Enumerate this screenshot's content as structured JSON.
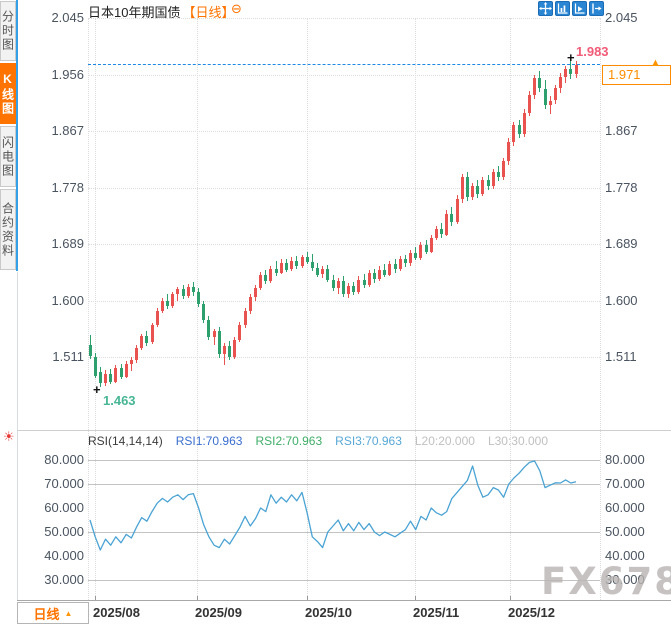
{
  "header": {
    "title": "日本10年期国债",
    "period_tag": "【日线】",
    "collapse_glyph": "⊖"
  },
  "sidebar": {
    "tabs": [
      {
        "label": "分时图",
        "active": false
      },
      {
        "label": "K线图",
        "active": true
      },
      {
        "label": "闪电图",
        "active": false
      },
      {
        "label": "合约资料",
        "active": false
      }
    ]
  },
  "toolbar": {
    "icons": [
      "crosshair",
      "zoom-axes",
      "pan-chart",
      "shift-axis-right"
    ]
  },
  "markers": {
    "high_value": "1.983",
    "low_value": "1.463",
    "last_value": "1.971",
    "high_cursor": "+",
    "low_cursor": "+",
    "latest_marker": "▲"
  },
  "rsi_header": {
    "name": "RSI(14,14,14)",
    "rsi1": "RSI1:70.963",
    "rsi2": "RSI2:70.963",
    "rsi3": "RSI3:70.963",
    "l20": "L20:20.000",
    "l30": "L30:30.000"
  },
  "footer": {
    "period_button": "日线",
    "period_arrow": "▲"
  },
  "icons": {
    "indicator_settings": "☀"
  },
  "watermark": "FX678",
  "colors": {
    "up": "#e8534f",
    "down": "#2ea06e",
    "accent_orange": "#ff7301",
    "dashed_line": "#1e88e5",
    "rsi_line": "#4aa3d4",
    "high_label": "#f25b77",
    "low_label": "#46b694",
    "icon_blue": "#2a86d2",
    "grid_dotted": "#dcdcdc",
    "grid_solid": "#c3c3c3"
  },
  "chart_data": {
    "type": "candlestick",
    "instrument": "日本10年期国债",
    "period": "日线",
    "title": "日本10年期国债【日线】",
    "price_axis": {
      "ticks": [
        2.045,
        1.956,
        1.867,
        1.778,
        1.689,
        1.6,
        1.511
      ],
      "high": 1.983,
      "low": 1.463,
      "last": 1.971
    },
    "x_axis": {
      "labels": [
        "2025/08",
        "2025/09",
        "2025/10",
        "2025/11",
        "2025/12"
      ]
    },
    "legend": "grid on, RSI sub-panel, last price dashed line at 1.971",
    "candles_ohlc": [
      [
        1.53,
        1.546,
        1.508,
        1.512
      ],
      [
        1.512,
        1.518,
        1.478,
        1.482
      ],
      [
        1.488,
        1.495,
        1.463,
        1.47
      ],
      [
        1.47,
        1.49,
        1.466,
        1.485
      ],
      [
        1.485,
        1.492,
        1.468,
        1.472
      ],
      [
        1.472,
        1.498,
        1.47,
        1.494
      ],
      [
        1.494,
        1.5,
        1.476,
        1.48
      ],
      [
        1.48,
        1.505,
        1.478,
        1.5
      ],
      [
        1.5,
        1.512,
        1.49,
        1.506
      ],
      [
        1.506,
        1.53,
        1.502,
        1.526
      ],
      [
        1.526,
        1.548,
        1.522,
        1.545
      ],
      [
        1.545,
        1.552,
        1.528,
        1.534
      ],
      [
        1.534,
        1.565,
        1.531,
        1.562
      ],
      [
        1.562,
        1.588,
        1.558,
        1.584
      ],
      [
        1.584,
        1.604,
        1.58,
        1.6
      ],
      [
        1.6,
        1.61,
        1.586,
        1.591
      ],
      [
        1.591,
        1.614,
        1.589,
        1.61
      ],
      [
        1.61,
        1.622,
        1.6,
        1.618
      ],
      [
        1.618,
        1.624,
        1.603,
        1.607
      ],
      [
        1.607,
        1.626,
        1.604,
        1.622
      ],
      [
        1.622,
        1.63,
        1.608,
        1.613
      ],
      [
        1.613,
        1.62,
        1.59,
        1.595
      ],
      [
        1.595,
        1.6,
        1.564,
        1.569
      ],
      [
        1.569,
        1.576,
        1.538,
        1.543
      ],
      [
        1.543,
        1.556,
        1.53,
        1.552
      ],
      [
        1.552,
        1.558,
        1.51,
        1.516
      ],
      [
        1.516,
        1.534,
        1.498,
        1.529
      ],
      [
        1.529,
        1.536,
        1.506,
        1.511
      ],
      [
        1.511,
        1.542,
        1.508,
        1.538
      ],
      [
        1.538,
        1.566,
        1.534,
        1.561
      ],
      [
        1.561,
        1.588,
        1.557,
        1.583
      ],
      [
        1.583,
        1.61,
        1.579,
        1.605
      ],
      [
        1.605,
        1.625,
        1.599,
        1.62
      ],
      [
        1.62,
        1.645,
        1.616,
        1.64
      ],
      [
        1.64,
        1.648,
        1.626,
        1.631
      ],
      [
        1.631,
        1.655,
        1.628,
        1.65
      ],
      [
        1.65,
        1.662,
        1.638,
        1.644
      ],
      [
        1.644,
        1.665,
        1.641,
        1.66
      ],
      [
        1.66,
        1.666,
        1.645,
        1.649
      ],
      [
        1.649,
        1.668,
        1.646,
        1.663
      ],
      [
        1.663,
        1.67,
        1.649,
        1.654
      ],
      [
        1.654,
        1.672,
        1.651,
        1.668
      ],
      [
        1.668,
        1.676,
        1.657,
        1.661
      ],
      [
        1.661,
        1.674,
        1.647,
        1.651
      ],
      [
        1.651,
        1.66,
        1.637,
        1.641
      ],
      [
        1.641,
        1.654,
        1.635,
        1.65
      ],
      [
        1.65,
        1.656,
        1.629,
        1.633
      ],
      [
        1.633,
        1.64,
        1.615,
        1.619
      ],
      [
        1.619,
        1.636,
        1.611,
        1.631
      ],
      [
        1.631,
        1.638,
        1.606,
        1.611
      ],
      [
        1.611,
        1.628,
        1.604,
        1.623
      ],
      [
        1.623,
        1.63,
        1.609,
        1.613
      ],
      [
        1.613,
        1.638,
        1.61,
        1.633
      ],
      [
        1.633,
        1.642,
        1.619,
        1.624
      ],
      [
        1.624,
        1.648,
        1.621,
        1.643
      ],
      [
        1.643,
        1.65,
        1.628,
        1.634
      ],
      [
        1.634,
        1.655,
        1.631,
        1.649
      ],
      [
        1.649,
        1.658,
        1.637,
        1.641
      ],
      [
        1.641,
        1.662,
        1.639,
        1.657
      ],
      [
        1.657,
        1.665,
        1.644,
        1.649
      ],
      [
        1.649,
        1.67,
        1.647,
        1.665
      ],
      [
        1.665,
        1.672,
        1.653,
        1.659
      ],
      [
        1.659,
        1.68,
        1.655,
        1.675
      ],
      [
        1.675,
        1.684,
        1.663,
        1.667
      ],
      [
        1.667,
        1.692,
        1.664,
        1.687
      ],
      [
        1.687,
        1.696,
        1.673,
        1.677
      ],
      [
        1.677,
        1.704,
        1.675,
        1.699
      ],
      [
        1.699,
        1.718,
        1.695,
        1.713
      ],
      [
        1.713,
        1.722,
        1.699,
        1.704
      ],
      [
        1.704,
        1.742,
        1.701,
        1.737
      ],
      [
        1.737,
        1.748,
        1.718,
        1.724
      ],
      [
        1.724,
        1.766,
        1.721,
        1.76
      ],
      [
        1.76,
        1.8,
        1.754,
        1.794
      ],
      [
        1.794,
        1.802,
        1.756,
        1.763
      ],
      [
        1.763,
        1.786,
        1.759,
        1.78
      ],
      [
        1.78,
        1.79,
        1.762,
        1.768
      ],
      [
        1.768,
        1.795,
        1.765,
        1.79
      ],
      [
        1.79,
        1.798,
        1.774,
        1.78
      ],
      [
        1.78,
        1.808,
        1.776,
        1.803
      ],
      [
        1.803,
        1.812,
        1.788,
        1.794
      ],
      [
        1.794,
        1.825,
        1.79,
        1.82
      ],
      [
        1.82,
        1.856,
        1.814,
        1.85
      ],
      [
        1.85,
        1.882,
        1.844,
        1.876
      ],
      [
        1.876,
        1.884,
        1.856,
        1.862
      ],
      [
        1.862,
        1.902,
        1.858,
        1.896
      ],
      [
        1.896,
        1.93,
        1.89,
        1.924
      ],
      [
        1.924,
        1.955,
        1.917,
        1.95
      ],
      [
        1.95,
        1.962,
        1.928,
        1.934
      ],
      [
        1.934,
        1.948,
        1.902,
        1.908
      ],
      [
        1.908,
        1.922,
        1.894,
        1.915
      ],
      [
        1.915,
        1.94,
        1.909,
        1.935
      ],
      [
        1.935,
        1.958,
        1.927,
        1.952
      ],
      [
        1.952,
        1.97,
        1.943,
        1.964
      ],
      [
        1.964,
        1.983,
        1.949,
        1.957
      ],
      [
        1.957,
        1.978,
        1.951,
        1.971
      ]
    ],
    "rsi": {
      "params": "RSI(14,14,14)",
      "ticks": [
        80,
        70,
        60,
        50,
        40,
        30
      ],
      "guide_lines": [
        80,
        70,
        50,
        30
      ],
      "last": 70.963,
      "values": [
        55,
        48,
        42.5,
        47,
        44.5,
        48,
        45.5,
        49,
        47.5,
        52,
        56,
        54.5,
        58.5,
        62,
        64,
        62.5,
        64.5,
        65.5,
        63.5,
        65.5,
        66,
        60,
        53,
        48,
        44.5,
        43.5,
        47,
        45,
        48.5,
        52,
        56.5,
        52.5,
        55.5,
        60,
        58.5,
        65.5,
        62,
        64.5,
        62.5,
        65.5,
        63,
        66.5,
        58,
        48,
        46,
        43.5,
        50,
        52.5,
        55,
        50.5,
        53.5,
        50.5,
        54,
        51,
        53.5,
        50,
        48.5,
        50,
        49,
        48,
        49.5,
        51,
        54.5,
        51,
        56.5,
        55,
        60,
        58,
        57,
        58.5,
        64,
        66.5,
        69,
        71.5,
        77.5,
        69.5,
        64.5,
        65.5,
        68.5,
        67.5,
        64.5,
        70,
        72.5,
        74.5,
        77,
        79,
        79.6,
        75.5,
        68.5,
        69.5,
        70.5,
        70.4,
        71.7,
        70.4,
        70.963
      ]
    }
  }
}
